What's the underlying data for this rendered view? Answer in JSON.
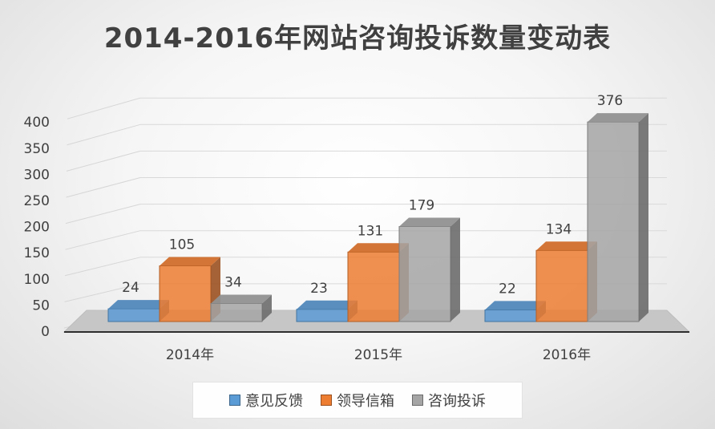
{
  "chart_data": {
    "type": "bar",
    "title": "2014-2016年网站咨询投诉数量变动表",
    "categories": [
      "2014年",
      "2015年",
      "2016年"
    ],
    "series": [
      {
        "name": "意见反馈",
        "values": [
          24,
          23,
          22
        ],
        "color": "#5b9bd5"
      },
      {
        "name": "领导信箱",
        "values": [
          105,
          131,
          134
        ],
        "color": "#ed7d31"
      },
      {
        "name": "咨询投诉",
        "values": [
          34,
          179,
          376
        ],
        "color": "#a5a5a5"
      }
    ],
    "yticks": [
      "0",
      "50",
      "100",
      "150",
      "200",
      "250",
      "300",
      "350",
      "400"
    ],
    "ylim": [
      0,
      400
    ],
    "grid": true,
    "legend_position": "bottom",
    "style": "3d-clustered-column"
  }
}
